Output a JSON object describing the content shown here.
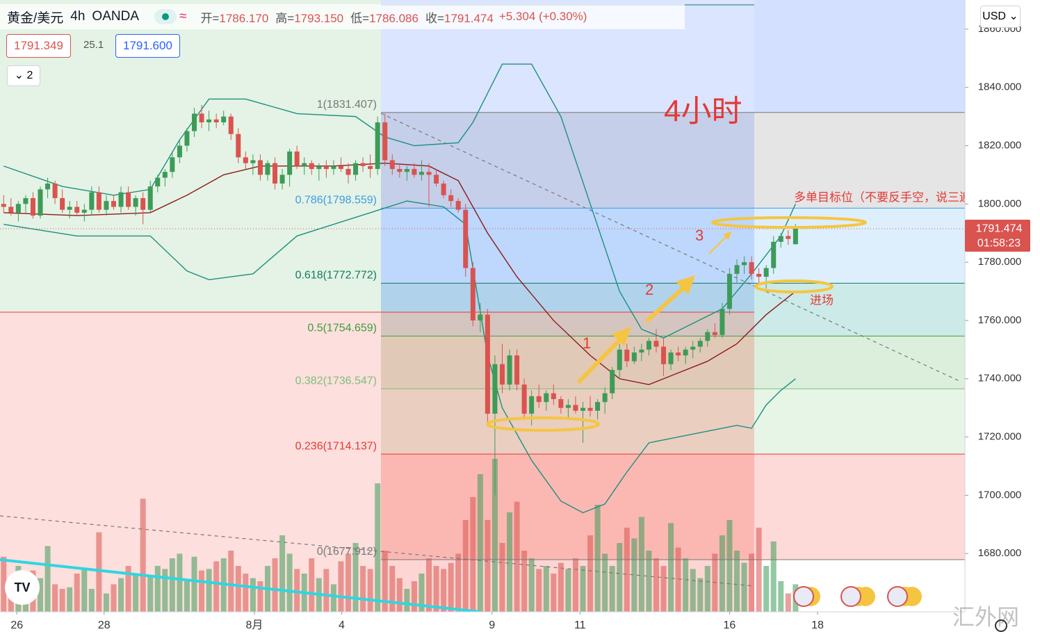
{
  "chart_data": {
    "type": "candlestick",
    "symbol": "黄金/美元",
    "interval": "4h",
    "source": "OANDA",
    "ohlc_header": [
      {
        "label": "开=",
        "value": "1786.170"
      },
      {
        "label": "高=",
        "value": "1793.150"
      },
      {
        "label": "低=",
        "value": "1786.086"
      },
      {
        "label": "收=",
        "value": "1791.474"
      }
    ],
    "change": "+5.304 (+0.30%)",
    "bid": "1791.349",
    "spread": "25.1",
    "ask": "1791.600",
    "indicator_count": "2",
    "currency": "USD",
    "title": "4小时",
    "annotations": [
      "多单目标位（不要反手空，说三遍）",
      "进场",
      "1",
      "2",
      "3"
    ],
    "watermark": "汇外网",
    "last_price": 1791.474,
    "countdown": "01:58:23",
    "up_color": "#3d9b58",
    "down_color": "#d9534f",
    "x": [
      0,
      1,
      2,
      3,
      4,
      5,
      6,
      7,
      8,
      9,
      10,
      11,
      12,
      13,
      14,
      15,
      16,
      17,
      18,
      19,
      20,
      21,
      22,
      23,
      24,
      25,
      26,
      27,
      28,
      29,
      30,
      31,
      32,
      33,
      34,
      35,
      36,
      37,
      38,
      39,
      40,
      41,
      42,
      43,
      44,
      45,
      46,
      47,
      48,
      49,
      50,
      51,
      52,
      53,
      54,
      55,
      56,
      57,
      58,
      59,
      60,
      61,
      62,
      63,
      64,
      65,
      66,
      67,
      68,
      69,
      70,
      71,
      72,
      73,
      74,
      75,
      76,
      77,
      78,
      79,
      80,
      81,
      82,
      83,
      84,
      85,
      86,
      87,
      88,
      89,
      90,
      91,
      92,
      93,
      94,
      95,
      96,
      97,
      98,
      99,
      100,
      101,
      102,
      103,
      104,
      105,
      106,
      107,
      108
    ],
    "ohlc": [
      [
        1800,
        1803,
        1797,
        1799
      ],
      [
        1799,
        1802,
        1796,
        1797
      ],
      [
        1797,
        1801,
        1794,
        1800
      ],
      [
        1800,
        1803,
        1797,
        1802
      ],
      [
        1802,
        1804,
        1795,
        1796
      ],
      [
        1796,
        1806,
        1795,
        1805
      ],
      [
        1805,
        1809,
        1802,
        1807
      ],
      [
        1807,
        1808,
        1800,
        1802
      ],
      [
        1802,
        1805,
        1797,
        1798
      ],
      [
        1798,
        1801,
        1795,
        1799
      ],
      [
        1799,
        1801,
        1796,
        1797
      ],
      [
        1797,
        1800,
        1794,
        1798
      ],
      [
        1798,
        1806,
        1796,
        1804
      ],
      [
        1804,
        1806,
        1797,
        1798
      ],
      [
        1798,
        1803,
        1796,
        1801
      ],
      [
        1801,
        1803,
        1798,
        1799
      ],
      [
        1799,
        1806,
        1797,
        1804
      ],
      [
        1804,
        1806,
        1798,
        1799
      ],
      [
        1799,
        1803,
        1796,
        1802
      ],
      [
        1802,
        1804,
        1793,
        1798
      ],
      [
        1798,
        1808,
        1797,
        1806
      ],
      [
        1806,
        1810,
        1804,
        1809
      ],
      [
        1809,
        1812,
        1806,
        1811
      ],
      [
        1811,
        1818,
        1809,
        1816
      ],
      [
        1816,
        1822,
        1814,
        1820
      ],
      [
        1820,
        1826,
        1818,
        1825
      ],
      [
        1825,
        1833,
        1823,
        1831
      ],
      [
        1831,
        1834,
        1826,
        1828
      ],
      [
        1828,
        1832,
        1825,
        1829
      ],
      [
        1829,
        1831,
        1826,
        1828
      ],
      [
        1828,
        1832,
        1827,
        1830
      ],
      [
        1830,
        1831,
        1822,
        1824
      ],
      [
        1824,
        1826,
        1814,
        1816
      ],
      [
        1816,
        1818,
        1812,
        1814
      ],
      [
        1814,
        1817,
        1810,
        1815
      ],
      [
        1815,
        1817,
        1808,
        1810
      ],
      [
        1810,
        1815,
        1808,
        1814
      ],
      [
        1814,
        1816,
        1805,
        1807
      ],
      [
        1807,
        1812,
        1805,
        1810
      ],
      [
        1810,
        1819,
        1806,
        1818
      ],
      [
        1818,
        1820,
        1812,
        1813
      ],
      [
        1813,
        1816,
        1810,
        1814
      ],
      [
        1814,
        1815,
        1810,
        1812
      ],
      [
        1812,
        1814,
        1808,
        1813
      ],
      [
        1813,
        1815,
        1809,
        1812
      ],
      [
        1812,
        1815,
        1810,
        1813
      ],
      [
        1813,
        1816,
        1811,
        1812
      ],
      [
        1812,
        1814,
        1807,
        1810
      ],
      [
        1810,
        1815,
        1808,
        1814
      ],
      [
        1814,
        1816,
        1811,
        1813
      ],
      [
        1813,
        1817,
        1809,
        1812
      ],
      [
        1812,
        1830,
        1810,
        1828
      ],
      [
        1828,
        1831,
        1813,
        1815
      ],
      [
        1815,
        1817,
        1810,
        1812
      ],
      [
        1812,
        1814,
        1809,
        1811
      ],
      [
        1811,
        1813,
        1808,
        1812
      ],
      [
        1812,
        1814,
        1809,
        1810
      ],
      [
        1810,
        1815,
        1808,
        1811
      ],
      [
        1811,
        1814,
        1799,
        1810
      ],
      [
        1810,
        1812,
        1806,
        1807
      ],
      [
        1807,
        1808,
        1802,
        1803
      ],
      [
        1803,
        1805,
        1799,
        1801
      ],
      [
        1801,
        1802,
        1797,
        1798
      ],
      [
        1798,
        1800,
        1775,
        1778
      ],
      [
        1778,
        1780,
        1758,
        1760
      ],
      [
        1760,
        1766,
        1756,
        1762
      ],
      [
        1762,
        1764,
        1725,
        1728
      ],
      [
        1728,
        1748,
        1700,
        1745
      ],
      [
        1745,
        1752,
        1735,
        1738
      ],
      [
        1738,
        1750,
        1736,
        1748
      ],
      [
        1748,
        1750,
        1736,
        1738
      ],
      [
        1738,
        1740,
        1726,
        1728
      ],
      [
        1728,
        1736,
        1724,
        1734
      ],
      [
        1734,
        1738,
        1730,
        1732
      ],
      [
        1732,
        1736,
        1729,
        1735
      ],
      [
        1735,
        1738,
        1731,
        1733
      ],
      [
        1733,
        1734,
        1728,
        1730
      ],
      [
        1730,
        1733,
        1726,
        1731
      ],
      [
        1731,
        1734,
        1728,
        1729
      ],
      [
        1729,
        1732,
        1718,
        1730
      ],
      [
        1730,
        1734,
        1727,
        1729
      ],
      [
        1729,
        1733,
        1726,
        1732
      ],
      [
        1732,
        1737,
        1728,
        1735
      ],
      [
        1735,
        1744,
        1733,
        1743
      ],
      [
        1743,
        1752,
        1740,
        1750
      ],
      [
        1750,
        1752,
        1744,
        1746
      ],
      [
        1746,
        1751,
        1745,
        1749
      ],
      [
        1749,
        1752,
        1746,
        1750
      ],
      [
        1750,
        1754,
        1748,
        1753
      ],
      [
        1753,
        1757,
        1749,
        1751
      ],
      [
        1751,
        1754,
        1741,
        1745
      ],
      [
        1745,
        1750,
        1743,
        1749
      ],
      [
        1749,
        1751,
        1746,
        1748
      ],
      [
        1748,
        1751,
        1745,
        1750
      ],
      [
        1750,
        1753,
        1747,
        1751
      ],
      [
        1751,
        1754,
        1749,
        1753
      ],
      [
        1753,
        1757,
        1751,
        1756
      ],
      [
        1756,
        1759,
        1754,
        1755
      ],
      [
        1755,
        1766,
        1754,
        1764
      ],
      [
        1764,
        1778,
        1762,
        1776
      ],
      [
        1776,
        1781,
        1773,
        1779
      ],
      [
        1779,
        1782,
        1776,
        1780
      ],
      [
        1780,
        1782,
        1774,
        1776
      ],
      [
        1776,
        1778,
        1772,
        1775
      ],
      [
        1775,
        1779,
        1771,
        1778
      ],
      [
        1778,
        1789,
        1776,
        1787
      ],
      [
        1787,
        1790,
        1785,
        1789
      ],
      [
        1789,
        1791,
        1786,
        1788
      ],
      [
        1786.17,
        1793.15,
        1786.086,
        1791.474
      ]
    ],
    "volume": [
      36,
      20,
      30,
      24,
      27,
      22,
      43,
      18,
      15,
      16,
      25,
      28,
      15,
      52,
      12,
      18,
      22,
      30,
      25,
      74,
      24,
      30,
      28,
      35,
      38,
      20,
      36,
      27,
      28,
      33,
      35,
      40,
      30,
      25,
      22,
      20,
      30,
      35,
      50,
      38,
      28,
      25,
      35,
      22,
      28,
      18,
      33,
      38,
      45,
      30,
      28,
      84,
      40,
      30,
      22,
      15,
      20,
      25,
      35,
      30,
      28,
      32,
      38,
      60,
      75,
      90,
      60,
      100,
      45,
      65,
      72,
      40,
      35,
      28,
      30,
      25,
      32,
      28,
      35,
      30,
      50,
      70,
      38,
      30,
      45,
      55,
      48,
      62,
      40,
      35,
      30,
      58,
      42,
      35,
      28,
      22,
      30,
      38,
      50,
      60,
      40,
      32,
      38,
      55,
      30,
      46,
      20,
      12,
      18
    ],
    "volume_lim": [
      0,
      100
    ],
    "bands": [
      {
        "color": "#1c8f7f",
        "x": [
          0,
          8,
          15,
          20,
          24,
          28,
          33,
          40,
          48,
          52,
          56,
          62,
          64,
          66,
          68,
          72,
          76,
          80,
          84,
          87,
          90,
          94,
          98,
          102,
          106,
          108
        ],
        "values": [
          1813,
          1806,
          1803,
          1805,
          1822,
          1836,
          1836,
          1831,
          1830,
          1823,
          1820,
          1821,
          1828,
          1838,
          1848,
          1848,
          1830,
          1800,
          1770,
          1757,
          1754,
          1759,
          1764,
          1776,
          1789,
          1800
        ]
      },
      {
        "color": "#8b1a1a",
        "x": [
          0,
          10,
          20,
          25,
          30,
          35,
          45,
          52,
          58,
          62,
          66,
          70,
          75,
          80,
          84,
          88,
          92,
          96,
          100,
          104,
          108
        ],
        "values": [
          1797,
          1796,
          1797,
          1803,
          1810,
          1813,
          1813,
          1814,
          1813,
          1808,
          1790,
          1775,
          1760,
          1748,
          1740,
          1738,
          1742,
          1746,
          1752,
          1762,
          1770
        ]
      },
      {
        "color": "#1c8f7f",
        "x": [
          0,
          10,
          20,
          25,
          28,
          34,
          40,
          45,
          50,
          55,
          60,
          63,
          66,
          68,
          72,
          76,
          79,
          82,
          85,
          88,
          92,
          96,
          100,
          102,
          104,
          106,
          108
        ],
        "values": [
          1793,
          1789,
          1789,
          1777,
          1774,
          1776,
          1789,
          1793,
          1797,
          1801,
          1799,
          1793,
          1748,
          1730,
          1712,
          1698,
          1694,
          1697,
          1708,
          1718,
          1720,
          1722,
          1724,
          1723,
          1731,
          1736,
          1740
        ]
      }
    ],
    "fib_levels": [
      {
        "label": "1(1831.407)",
        "value": 1831.407,
        "color": "#777777",
        "fill": "rgba(150,150,150,0.25)"
      },
      {
        "label": "0.786(1798.559)",
        "value": 1798.559,
        "color": "#3d9be9",
        "fill": "rgba(100,180,240,0.22)"
      },
      {
        "label": "0.618(1772.772)",
        "value": 1772.772,
        "color": "#117a65",
        "fill": "rgba(0,150,136,0.2)"
      },
      {
        "label": "0.5(1754.659)",
        "value": 1754.659,
        "color": "#3c9d3c",
        "fill": "rgba(76,175,80,0.2)"
      },
      {
        "label": "0.382(1736.547)",
        "value": 1736.547,
        "color": "#7cbf7c",
        "fill": "rgba(120,200,120,0.18)"
      },
      {
        "label": "0.236(1714.137)",
        "value": 1714.137,
        "color": "#e53935",
        "fill": "rgba(244,67,54,0.2)"
      },
      {
        "label": "0(1677.912)",
        "value": 1677.912,
        "color": "#777777",
        "fill": "rgba(0,0,0,0)"
      }
    ],
    "xlim": [
      -0.5,
      131.1
    ],
    "ylim": [
      1660,
      1870
    ],
    "xticks": [
      {
        "value": 1.8,
        "label": "26"
      },
      {
        "value": 13.7,
        "label": "28"
      },
      {
        "value": 34.2,
        "label": "8月"
      },
      {
        "value": 46.1,
        "label": "4"
      },
      {
        "value": 66.6,
        "label": "9"
      },
      {
        "value": 78.6,
        "label": "11"
      },
      {
        "value": 99,
        "label": "16"
      },
      {
        "value": 111,
        "label": "18"
      }
    ],
    "yticks": [
      {
        "value": 1680,
        "label": "1680.000"
      },
      {
        "value": 1700,
        "label": "1700.000"
      },
      {
        "value": 1720,
        "label": "1720.000"
      },
      {
        "value": 1740,
        "label": "1740.000"
      },
      {
        "value": 1760,
        "label": "1760.000"
      },
      {
        "value": 1780,
        "label": "1780.000"
      },
      {
        "value": 1800,
        "label": "1800.000"
      },
      {
        "value": 1820,
        "label": "1820.000"
      },
      {
        "value": 1840,
        "label": "1840.000"
      },
      {
        "value": 1860,
        "label": "1860.000"
      }
    ]
  }
}
